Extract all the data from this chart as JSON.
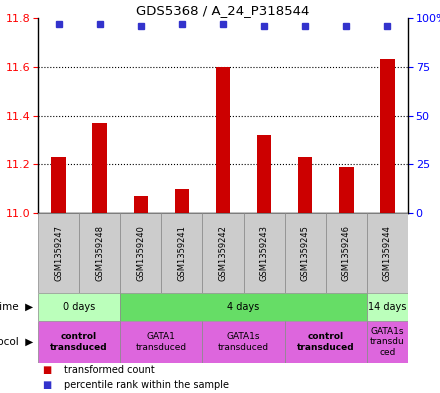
{
  "title": "GDS5368 / A_24_P318544",
  "samples": [
    "GSM1359247",
    "GSM1359248",
    "GSM1359240",
    "GSM1359241",
    "GSM1359242",
    "GSM1359243",
    "GSM1359245",
    "GSM1359246",
    "GSM1359244"
  ],
  "transformed_count": [
    11.23,
    11.37,
    11.07,
    11.1,
    11.6,
    11.32,
    11.23,
    11.19,
    11.63
  ],
  "percentile_rank": [
    97,
    97,
    96,
    97,
    97,
    96,
    96,
    96,
    96
  ],
  "ylim": [
    11.0,
    11.8
  ],
  "yticks": [
    11.0,
    11.2,
    11.4,
    11.6,
    11.8
  ],
  "right_yticks": [
    0,
    25,
    50,
    75,
    100
  ],
  "right_yticklabels": [
    "0",
    "25",
    "50",
    "75",
    "100%"
  ],
  "bar_color": "#cc0000",
  "dot_color": "#3333cc",
  "time_groups": [
    {
      "label": "0 days",
      "start": 0,
      "end": 2,
      "color": "#bbffbb"
    },
    {
      "label": "4 days",
      "start": 2,
      "end": 8,
      "color": "#66dd66"
    },
    {
      "label": "14 days",
      "start": 8,
      "end": 9,
      "color": "#bbffbb"
    }
  ],
  "protocol_groups": [
    {
      "label": "control\ntransduced",
      "start": 0,
      "end": 2,
      "color": "#dd66dd",
      "bold": true
    },
    {
      "label": "GATA1\ntransduced",
      "start": 2,
      "end": 4,
      "color": "#dd66dd",
      "bold": false
    },
    {
      "label": "GATA1s\ntransduced",
      "start": 4,
      "end": 6,
      "color": "#dd66dd",
      "bold": false
    },
    {
      "label": "control\ntransduced",
      "start": 6,
      "end": 8,
      "color": "#dd66dd",
      "bold": true
    },
    {
      "label": "GATA1s\ntransdu\nced",
      "start": 8,
      "end": 9,
      "color": "#dd66dd",
      "bold": false
    }
  ],
  "legend_red_label": "transformed count",
  "legend_blue_label": "percentile rank within the sample"
}
